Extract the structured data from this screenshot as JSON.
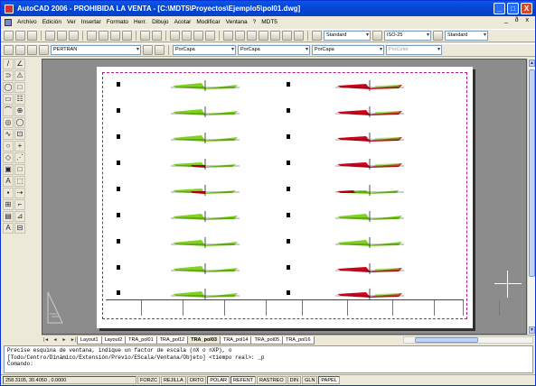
{
  "window": {
    "title": "AutoCAD 2006 - PROHIBIDA LA VENTA - [C:\\MDT5\\Proyectos\\Ejemplo5\\pol01.dwg]",
    "buttons": [
      "_",
      "□",
      "X"
    ]
  },
  "menubar": {
    "items": [
      "Archivo",
      "Edición",
      "Ver",
      "Insertar",
      "Formato",
      "Herr.",
      "Dibujo",
      "Acotar",
      "Modificar",
      "Ventana",
      "?",
      "MDT5"
    ],
    "right": "_ ð x"
  },
  "toolbar2": {
    "text_style": "Standard",
    "dim_style": "ISO-25",
    "table_style": "Standard"
  },
  "toolbar3": {
    "layer": "PERTRAN",
    "color": "PorCapa",
    "linetype": "PorCapa",
    "lineweight": "PorCapa",
    "plotstyle": "PorColor"
  },
  "left_tools": [
    "/",
    "∠",
    "⊃",
    "⚠",
    "◯",
    "□",
    "▭",
    "☷",
    "⌒",
    "⊕",
    "◎",
    "◯",
    "∿",
    "⊡",
    "○",
    "+",
    "◇",
    "⋰",
    "▣",
    "□",
    "A",
    "⬚",
    "▪",
    "⇢",
    "⊞",
    "⌐",
    "▤",
    "⊿",
    "A",
    "⊟"
  ],
  "drawing": {
    "accent_frame_color": "#b31a8e",
    "fill_color": "#7ed321",
    "cut_color": "#d0021b"
  },
  "tabs": {
    "nav": [
      "|◄",
      "◄",
      "►",
      "►|"
    ],
    "items": [
      "Layout1",
      "Layout2",
      "TRA_pol01",
      "TRA_pol12",
      "TRA_pol03",
      "TRA_pol14",
      "TRA_pol05",
      "TRA_pol16"
    ],
    "active_index": 4
  },
  "command": {
    "line1": "Precise esquina de ventana, indique un factor de escala (nX o nXP), o",
    "line2": "[Todo/Centro/Dinámico/Extensión/Previo/EScala/Ventana/Objeto] <tiempo real>: _p",
    "line3": "Comando:"
  },
  "status": {
    "coords": "258.3105, 30.4050 , 0.0000",
    "toggles": [
      "FORZC",
      "REJILLA",
      "ORTO",
      "POLAR",
      "REFENT",
      "RASTREO",
      "DIN",
      "GLN",
      "PAPEL"
    ],
    "on": [
      "POLAR",
      "REFENT",
      "PAPEL"
    ]
  }
}
